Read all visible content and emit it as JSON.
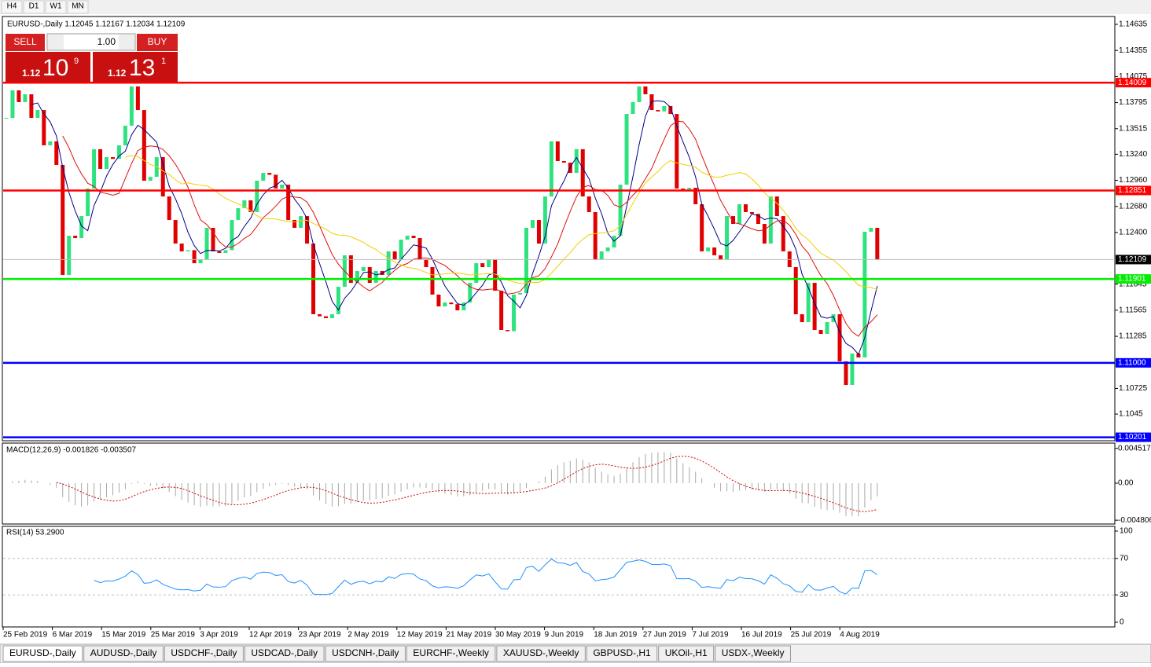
{
  "timeframes": [
    "H4",
    "D1",
    "W1",
    "MN"
  ],
  "trade_panel": {
    "sell": "SELL",
    "buy": "BUY",
    "lot": "1.00",
    "sell_price": [
      "1.12",
      "10",
      "9"
    ],
    "buy_price": [
      "1.12",
      "13",
      "1"
    ]
  },
  "chart": {
    "info": "EURUSD-,Daily 1.12045 1.12167 1.12034 1.12109",
    "ylim": [
      1.10172,
      1.14711
    ],
    "yticks": [
      1.14635,
      1.14355,
      1.14075,
      1.13795,
      1.13515,
      {
        "value": 1.1324,
        "label": "1.13240"
      },
      {
        "value": 1.1296,
        "label": "1.12960"
      },
      {
        "value": 1.1268,
        "label": "1.12680"
      },
      {
        "value": 1.124,
        "label": "1.12400"
      },
      1.11845,
      1.11565,
      1.11285,
      1.10725,
      1.1045
    ],
    "levels": [
      {
        "value": 1.14009,
        "color": "#ff0000"
      },
      {
        "value": 1.12851,
        "color": "#ff0000"
      },
      {
        "value": 1.11901,
        "color": "#00ee00"
      },
      {
        "value": {
          "value": 1.11,
          "label": "1.11000"
        },
        "color": "#0000ff"
      },
      {
        "value": 1.10201,
        "color": "#0000ff"
      }
    ],
    "last_price": 1.12109,
    "up_color": "#2ee37f",
    "down_color": "#e00000",
    "moving_averages": [
      {
        "period": 5,
        "color": "#00008b"
      },
      {
        "period": 10,
        "color": "#dd1111"
      },
      {
        "period": 20,
        "color": "#f0d000"
      }
    ],
    "closes": [
      1.13631,
      1.13926,
      1.138,
      1.13884,
      1.13631,
      1.13715,
      1.13336,
      1.13378,
      1.13125,
      1.11944,
      1.12365,
      1.1234,
      1.12576,
      1.12872,
      1.13294,
      1.13083,
      1.13209,
      1.1319,
      1.13336,
      1.13547,
      1.13968,
      1.13715,
      1.12956,
      1.12998,
      1.13209,
      1.12787,
      1.12534,
      1.12281,
      1.12197,
      1.1221,
      1.1207,
      1.12112,
      1.1245,
      1.12197,
      1.1218,
      1.1221,
      1.12534,
      1.12661,
      1.12745,
      1.12619,
      1.12956,
      1.1304,
      1.1302,
      1.12872,
      1.12914,
      1.12534,
      1.1245,
      1.12576,
      1.12281,
      1.11522,
      1.115,
      1.1148,
      1.11522,
      1.11817,
      1.12155,
      1.11859,
      1.11986,
      1.12028,
      1.11859,
      1.11986,
      1.11944,
      1.12197,
      1.12112,
      1.12323,
      1.12365,
      1.1234,
      1.12112,
      1.12028,
      1.11733,
      1.11606,
      1.11648,
      1.1163,
      1.11564,
      1.11648,
      1.11859,
      1.1207,
      1.12028,
      1.12112,
      1.11775,
      1.11353,
      1.1134,
      1.11733,
      1.1175,
      1.1245,
      1.12534,
      1.12281,
      1.12787,
      1.13378,
      1.13167,
      1.1315,
      1.1304,
      1.13294,
      1.12787,
      1.12619,
      1.12112,
      1.12197,
      1.12239,
      1.12365,
      1.12914,
      1.13673,
      1.138,
      1.13968,
      1.13884,
      1.13715,
      1.137,
      1.13758,
      1.13673,
      1.12872,
      1.1286,
      1.1288,
      1.12703,
      1.12197,
      1.12239,
      1.12155,
      1.12112,
      1.12576,
      1.12492,
      1.12703,
      1.12619,
      1.126,
      1.12492,
      1.12281,
      1.12787,
      1.12576,
      1.12197,
      1.12028,
      1.11522,
      1.11437,
      1.11859,
      1.11353,
      1.11311,
      1.11437,
      1.11522,
      1.11016,
      1.10762,
      1.111,
      1.11058,
      1.12408,
      1.1245,
      1.12109
    ],
    "x_labels": [
      "25 Feb 2019",
      "6 Mar 2019",
      "15 Mar 2019",
      "25 Mar 2019",
      "3 Apr 2019",
      "12 Apr 2019",
      "23 Apr 2019",
      "2 May 2019",
      "12 May 2019",
      "21 May 2019",
      "30 May 2019",
      "9 Jun 2019",
      "18 Jun 2019",
      "27 Jun 2019",
      "7 Jul 2019",
      "16 Jul 2019",
      "25 Jul 2019",
      "4 Aug 2019"
    ]
  },
  "macd": {
    "label": "MACD(12,26,9) -0.001826 -0.003507",
    "params": [
      12,
      26,
      9
    ],
    "ylim": [
      -0.0052,
      0.0051
    ],
    "yticks": [
      0.004517,
      {
        "value": 0,
        "label": "0.00"
      },
      -0.004806
    ],
    "bar_color": "#a8a8a8",
    "signal_color": "#cc0000"
  },
  "rsi": {
    "label": "RSI(14) 53.2900",
    "period": 14,
    "ylim": [
      -4.3,
      104.3
    ],
    "yticks": [
      100,
      70,
      30,
      0
    ],
    "levels": [
      70,
      30
    ],
    "color": "#1e90ff"
  },
  "tabs": [
    "EURUSD-,Daily",
    "AUDUSD-,Daily",
    "USDCHF-,Daily",
    "USDCAD-,Daily",
    "USDCNH-,Daily",
    "EURCHF-,Weekly",
    "XAUUSD-,Weekly",
    "GBPUSD-,H1",
    "UKOil-,H1",
    "USDX-,Weekly"
  ]
}
